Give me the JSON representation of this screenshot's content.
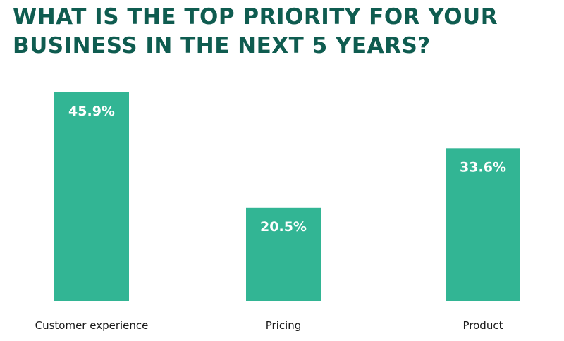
{
  "title_lines": [
    "What is the top priority for your",
    "business in the next 5 years?"
  ],
  "colors": {
    "bar": "#32b594",
    "title": "#0f5c50",
    "label": "#1a1a1a",
    "value_text": "#ffffff"
  },
  "chart_data": {
    "type": "bar",
    "title": "What is the top priority for your business in the next 5 years?",
    "categories": [
      "Customer experience",
      "Pricing",
      "Product"
    ],
    "values": [
      45.9,
      20.5,
      33.6
    ],
    "value_labels": [
      "45.9%",
      "20.5%",
      "33.6%"
    ],
    "xlabel": "",
    "ylabel": "",
    "ylim": [
      0,
      45.9
    ],
    "grid": false,
    "legend": "none"
  }
}
